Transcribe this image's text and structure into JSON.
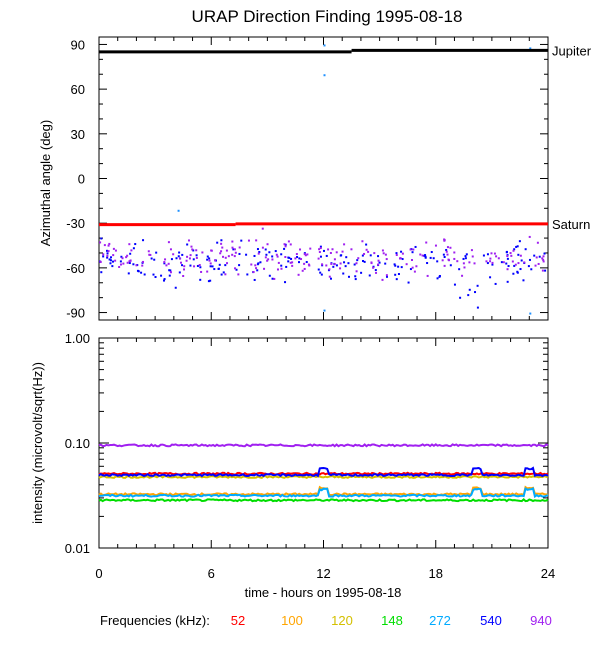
{
  "chart_data": [
    {
      "type": "scatter",
      "title": "URAP Direction Finding  1995-08-18",
      "xlabel": "",
      "ylabel": "Azimuthal angle (deg)",
      "xlim": [
        0,
        24
      ],
      "ylim": [
        -95,
        95
      ],
      "yticks": [
        "90",
        "60",
        "30",
        "0",
        "-30",
        "-60",
        "-90"
      ],
      "ytick_values": [
        90,
        60,
        30,
        0,
        -30,
        -60,
        -90
      ],
      "reference_lines": [
        {
          "name": "Jupiter",
          "color": "#000000",
          "segments": [
            [
              0,
              13.5,
              85
            ],
            [
              13.5,
              24,
              86
            ]
          ]
        },
        {
          "name": "Saturn",
          "color": "#ff0000",
          "segments": [
            [
              0,
              7.3,
              -31
            ],
            [
              7.3,
              24,
              -30.5
            ]
          ]
        }
      ],
      "series": [
        {
          "color": "#0000ff",
          "points_center": -55,
          "points_spread": 10
        },
        {
          "color": "#a020f0",
          "points_center": -52,
          "points_spread": 9
        }
      ],
      "outliers": [
        {
          "x": 12,
          "y": 90,
          "color": "#1e90ff"
        },
        {
          "x": 12,
          "y": 70,
          "color": "#1e90ff"
        },
        {
          "x": 4.2,
          "y": -21,
          "color": "#1e90ff"
        },
        {
          "x": 8.7,
          "y": -33,
          "color": "#a020f0"
        },
        {
          "x": 12,
          "y": -88,
          "color": "#1e90ff"
        },
        {
          "x": 23,
          "y": 88,
          "color": "#1e90ff"
        },
        {
          "x": 23,
          "y": -90,
          "color": "#1e90ff"
        },
        {
          "x": 20.2,
          "y": -86,
          "color": "#0000ff"
        }
      ]
    },
    {
      "type": "line",
      "title": "",
      "xlabel": "time - hours on 1995-08-18",
      "ylabel": "intensity (microvolt/sqrt(Hz))",
      "xlim": [
        0,
        24
      ],
      "ylim": [
        0.01,
        1.0
      ],
      "yscale": "log",
      "xticks": [
        "0",
        "6",
        "12",
        "18",
        "24"
      ],
      "xtick_values": [
        0,
        6,
        12,
        18,
        24
      ],
      "yticks": [
        "1.00",
        "0.10",
        "0.01"
      ],
      "ytick_values": [
        1.0,
        0.1,
        0.01
      ],
      "series": [
        {
          "name": "52",
          "color": "#ff0000",
          "level": 0.051
        },
        {
          "name": "100",
          "color": "#ffa500",
          "level": 0.0325
        },
        {
          "name": "120",
          "color": "#d4c000",
          "level": 0.0475
        },
        {
          "name": "148",
          "color": "#00dd00",
          "level": 0.0285
        },
        {
          "name": "272",
          "color": "#00aaff",
          "level": 0.0315
        },
        {
          "name": "540",
          "color": "#0000ff",
          "level": 0.0495
        },
        {
          "name": "940",
          "color": "#a020f0",
          "level": 0.095
        }
      ],
      "legend_title": "Frequencies (kHz):",
      "legend_placement": "bottom"
    }
  ]
}
